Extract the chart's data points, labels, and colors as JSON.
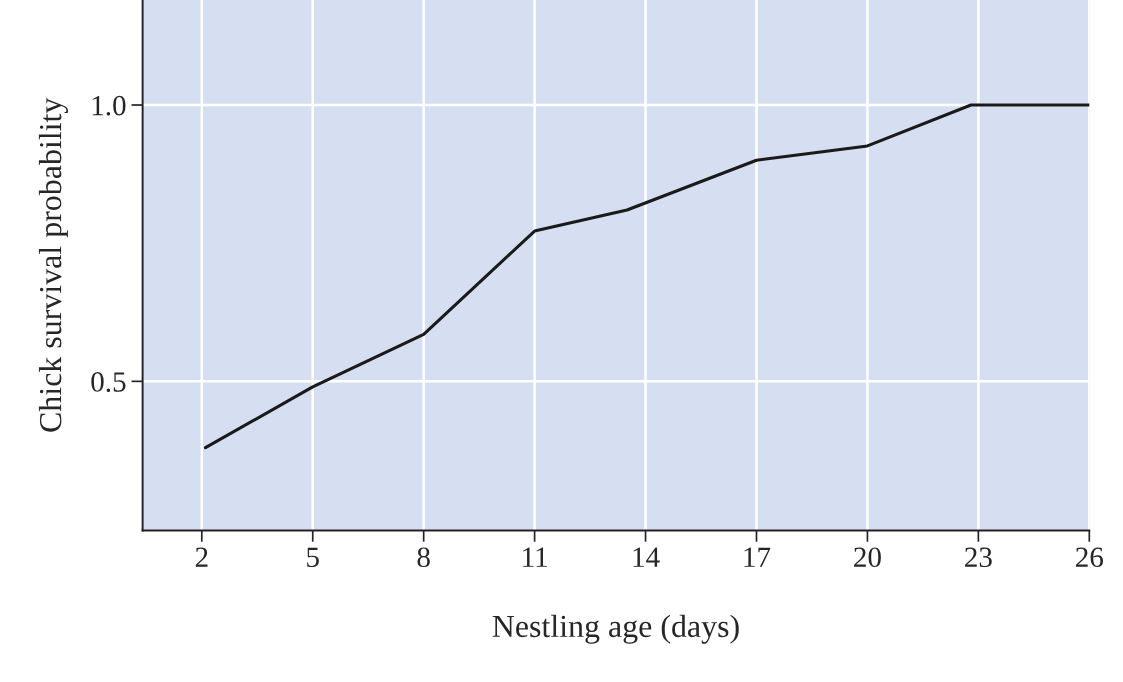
{
  "chart_data": {
    "type": "line",
    "xlabel": "Nestling age (days)",
    "ylabel": "Chick survival probability",
    "x": [
      2.1,
      5,
      8,
      11,
      13.5,
      17,
      20,
      22.8,
      26
    ],
    "series": [
      {
        "color": "#1a1a1a",
        "values": [
          0.38,
          0.49,
          0.585,
          0.772,
          0.81,
          0.9,
          0.926,
          1.0,
          1.0
        ]
      }
    ],
    "xlim": [
      0.4,
      26
    ],
    "xticks": [
      2,
      5,
      8,
      11,
      14,
      17,
      20,
      23,
      26
    ],
    "ylim": [
      0.23,
      1.19
    ],
    "yticks": [
      0.5,
      {
        "value": 1,
        "label": "1.0"
      }
    ],
    "grid": true,
    "marker": "none",
    "line_style": "solid"
  }
}
